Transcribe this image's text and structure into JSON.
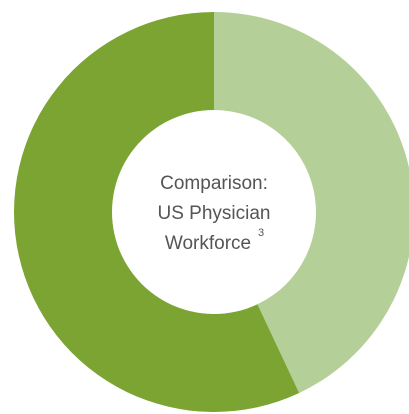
{
  "chart_data": {
    "type": "pie",
    "categories": [
      null,
      null
    ],
    "values": [
      43,
      57
    ],
    "colors": [
      "#b5cf98",
      "#7ba433"
    ],
    "center_label": [
      "Comparison:",
      "US Physician",
      "Workforce"
    ],
    "footnote": "3"
  }
}
